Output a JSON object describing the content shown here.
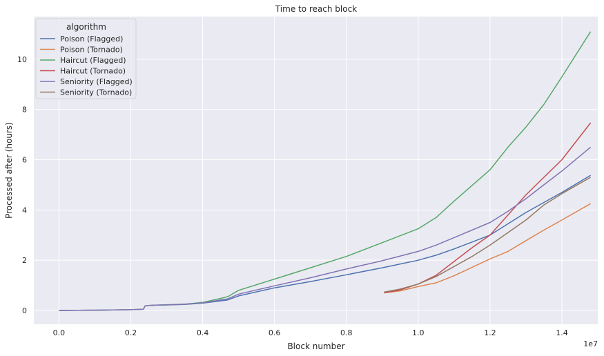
{
  "chart_data": {
    "type": "line",
    "title": "Time to reach block",
    "xlabel": "Block number",
    "ylabel": "Processed after (hours)",
    "x_scale_label": "1e7",
    "xlim": [
      -0.07,
      1.5
    ],
    "ylim": [
      -0.55,
      11.7
    ],
    "x_ticks": [
      0.0,
      0.2,
      0.4,
      0.6,
      0.8,
      1.0,
      1.2,
      1.4
    ],
    "x_tick_labels": [
      "0.0",
      "0.2",
      "0.4",
      "0.6",
      "0.8",
      "1.0",
      "1.2",
      "1.4"
    ],
    "y_ticks": [
      0,
      2,
      4,
      6,
      8,
      10
    ],
    "y_tick_labels": [
      "0",
      "2",
      "4",
      "6",
      "8",
      "10"
    ],
    "grid": true,
    "background": "#eaeaf2",
    "legend": {
      "title": "algorithm",
      "placement": "top-left"
    },
    "series": [
      {
        "name": "Poison (Flagged)",
        "color": "#4c72b0",
        "x": [
          0.0,
          0.1,
          0.2,
          0.235,
          0.24,
          0.25,
          0.27,
          0.3,
          0.35,
          0.4,
          0.45,
          0.47,
          0.5,
          0.6,
          0.7,
          0.8,
          0.9,
          1.0,
          1.05,
          1.1,
          1.2,
          1.3,
          1.4,
          1.48
        ],
        "y": [
          0.0,
          0.01,
          0.03,
          0.05,
          0.18,
          0.2,
          0.21,
          0.22,
          0.24,
          0.29,
          0.38,
          0.42,
          0.58,
          0.9,
          1.15,
          1.42,
          1.7,
          2.0,
          2.2,
          2.45,
          3.0,
          3.9,
          4.7,
          5.38
        ]
      },
      {
        "name": "Poison (Tornado)",
        "color": "#dd8452",
        "x": [
          0.905,
          0.95,
          1.0,
          1.05,
          1.1,
          1.2,
          1.25,
          1.3,
          1.35,
          1.4,
          1.48
        ],
        "y": [
          0.7,
          0.78,
          0.95,
          1.1,
          1.38,
          2.05,
          2.35,
          2.78,
          3.2,
          3.6,
          4.25
        ]
      },
      {
        "name": "Haircut (Flagged)",
        "color": "#55a868",
        "x": [
          0.0,
          0.1,
          0.2,
          0.235,
          0.24,
          0.25,
          0.27,
          0.3,
          0.35,
          0.4,
          0.45,
          0.47,
          0.5,
          0.6,
          0.7,
          0.8,
          0.9,
          1.0,
          1.05,
          1.1,
          1.2,
          1.25,
          1.3,
          1.35,
          1.4,
          1.48
        ],
        "y": [
          0.0,
          0.01,
          0.03,
          0.05,
          0.18,
          0.2,
          0.21,
          0.23,
          0.25,
          0.32,
          0.48,
          0.55,
          0.8,
          1.25,
          1.7,
          2.15,
          2.7,
          3.25,
          3.7,
          4.35,
          5.6,
          6.5,
          7.3,
          8.2,
          9.3,
          11.1
        ]
      },
      {
        "name": "Haircut (Tornado)",
        "color": "#c44e52",
        "x": [
          0.905,
          0.95,
          1.0,
          1.05,
          1.1,
          1.15,
          1.2,
          1.25,
          1.3,
          1.35,
          1.4,
          1.48
        ],
        "y": [
          0.7,
          0.82,
          1.05,
          1.4,
          1.95,
          2.5,
          3.0,
          3.8,
          4.6,
          5.3,
          6.0,
          7.47
        ]
      },
      {
        "name": "Seniority (Flagged)",
        "color": "#8172b3",
        "x": [
          0.0,
          0.1,
          0.2,
          0.235,
          0.24,
          0.25,
          0.27,
          0.3,
          0.35,
          0.4,
          0.45,
          0.47,
          0.5,
          0.6,
          0.7,
          0.8,
          0.9,
          1.0,
          1.05,
          1.1,
          1.2,
          1.25,
          1.3,
          1.35,
          1.4,
          1.48
        ],
        "y": [
          0.0,
          0.01,
          0.03,
          0.05,
          0.18,
          0.2,
          0.21,
          0.22,
          0.25,
          0.3,
          0.42,
          0.46,
          0.65,
          0.98,
          1.3,
          1.65,
          1.98,
          2.35,
          2.6,
          2.9,
          3.5,
          3.95,
          4.45,
          5.0,
          5.55,
          6.5
        ]
      },
      {
        "name": "Seniority (Tornado)",
        "color": "#937860",
        "x": [
          0.905,
          0.95,
          1.0,
          1.05,
          1.1,
          1.15,
          1.2,
          1.25,
          1.3,
          1.35,
          1.4,
          1.48
        ],
        "y": [
          0.73,
          0.85,
          1.05,
          1.35,
          1.75,
          2.15,
          2.6,
          3.1,
          3.6,
          4.2,
          4.65,
          5.3
        ]
      }
    ]
  }
}
